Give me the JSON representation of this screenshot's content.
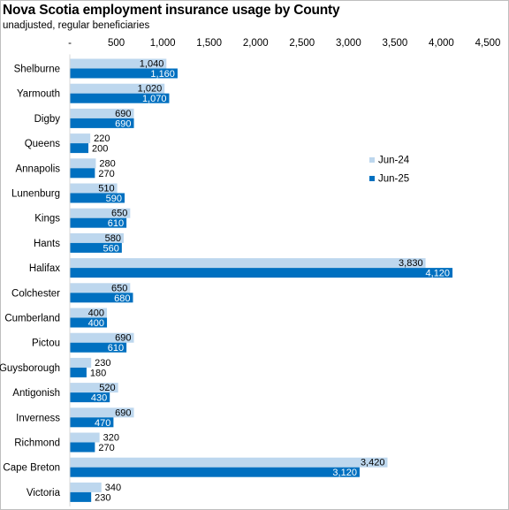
{
  "chart_data": {
    "type": "bar",
    "orientation": "horizontal",
    "title": "Nova Scotia employment insurance usage by County",
    "subtitle": "unadjusted, regular beneficiaries",
    "xlabel": "",
    "ylabel": "",
    "xlim": [
      0,
      4500
    ],
    "xtick_values": [
      0,
      500,
      1000,
      1500,
      2000,
      2500,
      3000,
      3500,
      4000,
      4500
    ],
    "xtick_labels": [
      "-",
      "500",
      "1,000",
      "1,500",
      "2,000",
      "2,500",
      "3,000",
      "3,500",
      "4,000",
      "4,500"
    ],
    "axis_position": "top",
    "grid": false,
    "legend_position": "right",
    "categories": [
      "Shelburne",
      "Yarmouth",
      "Digby",
      "Queens",
      "Annapolis",
      "Lunenburg",
      "Kings",
      "Hants",
      "Halifax",
      "Colchester",
      "Cumberland",
      "Pictou",
      "Guysborough",
      "Antigonish",
      "Inverness",
      "Richmond",
      "Cape Breton",
      "Victoria"
    ],
    "series": [
      {
        "name": "Jun-24",
        "color": "#bdd7ee",
        "values": [
          1040,
          1020,
          690,
          220,
          280,
          510,
          650,
          580,
          3830,
          650,
          400,
          690,
          230,
          520,
          690,
          320,
          3420,
          340
        ],
        "labels": [
          "1,040",
          "1,020",
          "690",
          "220",
          "280",
          "510",
          "650",
          "580",
          "3,830",
          "650",
          "400",
          "690",
          "230",
          "520",
          "690",
          "320",
          "3,420",
          "340"
        ]
      },
      {
        "name": "Jun-25",
        "color": "#0070c0",
        "values": [
          1160,
          1070,
          690,
          200,
          270,
          590,
          610,
          560,
          4120,
          680,
          400,
          610,
          180,
          430,
          470,
          270,
          3120,
          230
        ],
        "labels": [
          "1,160",
          "1,070",
          "690",
          "200",
          "270",
          "590",
          "610",
          "560",
          "4,120",
          "680",
          "400",
          "610",
          "180",
          "430",
          "470",
          "270",
          "3,120",
          "230"
        ]
      }
    ]
  }
}
